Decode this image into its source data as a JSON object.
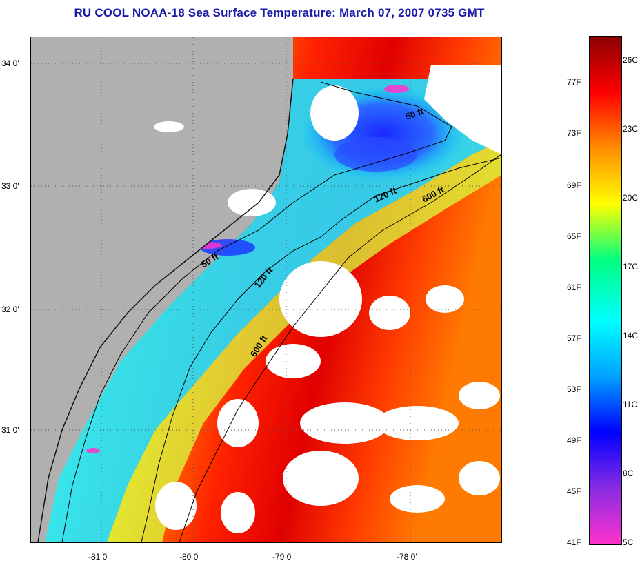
{
  "title": "RU COOL  NOAA-18  Sea Surface Temperature:  March 07, 2007 0735 GMT",
  "map": {
    "lat_labels": [
      "34 0'",
      "33 0'",
      "32 0'",
      "31 0'"
    ],
    "lon_labels": [
      "-81 0'",
      "-80 0'",
      "-79 0'",
      "-78 0'"
    ],
    "isobath_labels": [
      "50 ft",
      "120 ft",
      "600 ft",
      "50 ft",
      "120 ft",
      "600 ft"
    ]
  },
  "colorbar": {
    "fahrenheit_labels": [
      "77F",
      "73F",
      "69F",
      "65F",
      "61F",
      "57F",
      "53F",
      "49F",
      "45F",
      "41F"
    ],
    "celsius_labels": [
      "26C",
      "23C",
      "20C",
      "17C",
      "14C",
      "11C",
      "8C",
      "5C"
    ],
    "colors": [
      "#ff33cc",
      "#8a2be2",
      "#0000ff",
      "#00a0ff",
      "#00ffff",
      "#00ff80",
      "#ffff00",
      "#ff8c00",
      "#ff0000",
      "#8b0000"
    ]
  },
  "legend_colors": {
    "land": "#b0b0b0",
    "cloud": "#ffffff",
    "title": "#1a1aa8"
  }
}
